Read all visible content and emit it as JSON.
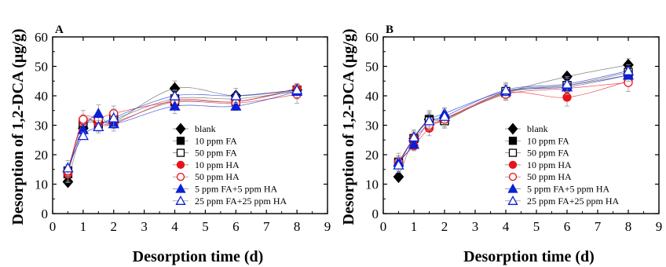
{
  "chart_data": [
    {
      "type": "scatter",
      "panel_label": "A",
      "xlabel": "Desorption time (d)",
      "ylabel": "Desorption of 1,2-DCA (μg/g)",
      "xlim": [
        0,
        9
      ],
      "ylim": [
        0,
        60
      ],
      "xticks": [
        "0",
        "1",
        "2",
        "3",
        "4",
        "5",
        "6",
        "7",
        "8",
        "9"
      ],
      "yticks": [
        "0",
        "10",
        "20",
        "30",
        "40",
        "50",
        "60"
      ],
      "legend_position": "lower-right",
      "x": [
        0.5,
        1,
        1.5,
        2,
        4,
        6,
        8
      ],
      "series": [
        {
          "name": "blank",
          "values": [
            10.8,
            29.0,
            31.0,
            31.0,
            42.5,
            40.0,
            42.0
          ],
          "marker": "diamond",
          "filled": true,
          "color": "#000000"
        },
        {
          "name": "10 ppm FA",
          "values": [
            13.5,
            30.0,
            31.5,
            31.0,
            38.0,
            38.0,
            42.0
          ],
          "marker": "square",
          "filled": true,
          "color": "#000000"
        },
        {
          "name": "50 ppm FA",
          "values": [
            14.5,
            31.0,
            30.5,
            32.0,
            39.0,
            39.0,
            41.5
          ],
          "marker": "square",
          "filled": false,
          "color": "#000000"
        },
        {
          "name": "10 ppm HA",
          "values": [
            13.5,
            31.5,
            30.5,
            30.5,
            38.5,
            38.0,
            42.5
          ],
          "marker": "circle",
          "filled": true,
          "color": "#e8141b"
        },
        {
          "name": "50 ppm HA",
          "values": [
            14.5,
            32.0,
            32.0,
            34.0,
            38.0,
            37.5,
            40.5
          ],
          "marker": "circle",
          "filled": false,
          "color": "#e8141b"
        },
        {
          "name": "5 ppm FA+5 ppm HA",
          "values": [
            15.5,
            28.5,
            34.0,
            30.5,
            36.5,
            36.5,
            41.5
          ],
          "marker": "triangle",
          "filled": true,
          "color": "#0b1fd6"
        },
        {
          "name": "25 ppm FA+25 ppm HA",
          "values": [
            15.5,
            26.5,
            29.5,
            32.5,
            40.0,
            40.0,
            42.0
          ],
          "marker": "triangle",
          "filled": false,
          "color": "#0b1fd6"
        }
      ]
    },
    {
      "type": "scatter",
      "panel_label": "B",
      "xlabel": "Desorption time (d)",
      "ylabel": "Desorption of 1,2-DCA (μg/g)",
      "xlim": [
        0,
        9
      ],
      "ylim": [
        0,
        60
      ],
      "xticks": [
        "0",
        "1",
        "2",
        "3",
        "4",
        "5",
        "6",
        "7",
        "8",
        "9"
      ],
      "yticks": [
        "0",
        "10",
        "20",
        "30",
        "40",
        "50",
        "60"
      ],
      "legend_position": "lower-right",
      "x": [
        0.5,
        1,
        1.5,
        2,
        4,
        6,
        8
      ],
      "series": [
        {
          "name": "blank",
          "values": [
            12.5,
            25.5,
            32.0,
            32.5,
            41.0,
            46.5,
            50.5
          ],
          "marker": "diamond",
          "filled": true,
          "color": "#000000"
        },
        {
          "name": "10 ppm FA",
          "values": [
            17.0,
            25.5,
            32.0,
            32.0,
            41.0,
            43.5,
            47.0
          ],
          "marker": "square",
          "filled": true,
          "color": "#000000"
        },
        {
          "name": "50 ppm FA",
          "values": [
            17.5,
            25.5,
            31.5,
            31.5,
            41.5,
            43.5,
            48.0
          ],
          "marker": "square",
          "filled": false,
          "color": "#000000"
        },
        {
          "name": "10 ppm HA",
          "values": [
            17.5,
            23.0,
            29.0,
            32.0,
            41.0,
            39.5,
            45.0
          ],
          "marker": "circle",
          "filled": true,
          "color": "#e8141b"
        },
        {
          "name": "50 ppm HA",
          "values": [
            17.5,
            25.5,
            30.0,
            32.0,
            40.5,
            42.5,
            44.5
          ],
          "marker": "circle",
          "filled": false,
          "color": "#e8141b"
        },
        {
          "name": "5 ppm FA+5 ppm HA",
          "values": [
            17.5,
            23.5,
            31.5,
            34.0,
            41.5,
            43.0,
            47.0
          ],
          "marker": "triangle",
          "filled": true,
          "color": "#0b1fd6"
        },
        {
          "name": "25 ppm FA+25 ppm HA",
          "values": [
            16.5,
            26.0,
            31.5,
            33.0,
            42.0,
            44.0,
            48.5
          ],
          "marker": "triangle",
          "filled": false,
          "color": "#0b1fd6"
        }
      ]
    }
  ]
}
